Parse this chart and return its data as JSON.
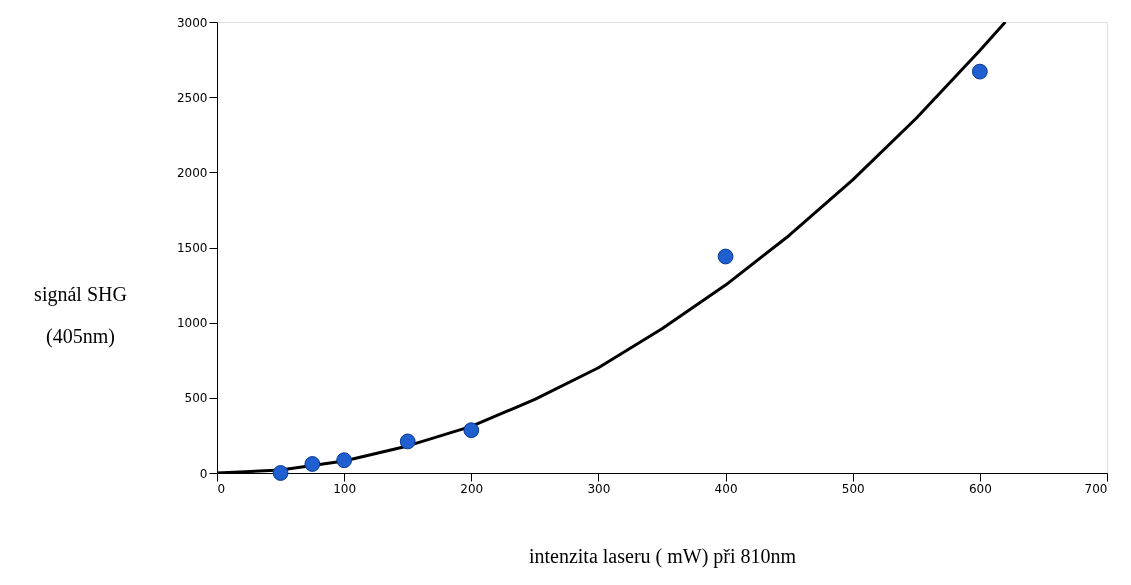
{
  "chart_data": {
    "type": "scatter",
    "xlabel": "intenzita laseru ( mW) při 810nm",
    "ylabel": "signál SHG\n(405nm)",
    "xlim": [
      0,
      700
    ],
    "xticks": [
      0,
      100,
      200,
      300,
      400,
      500,
      600,
      700
    ],
    "ylim": [
      0,
      3000
    ],
    "yticks": [
      0,
      500,
      1000,
      1500,
      2000,
      2500,
      3000
    ],
    "grid": false,
    "marker": "circle",
    "series": [
      {
        "color": "#1f5fd0",
        "x": [
          50,
          75,
          100,
          150,
          200,
          400,
          600
        ],
        "values": [
          0,
          60,
          85,
          210,
          285,
          1440,
          2670
        ]
      },
      {
        "type": "line",
        "color": "#000000",
        "marker": "none",
        "line_style": "solid",
        "x": [
          0,
          50,
          100,
          150,
          200,
          250,
          300,
          350,
          400,
          450,
          500,
          550,
          600,
          620
        ],
        "values": [
          0,
          20,
          80,
          180,
          310,
          490,
          700,
          960,
          1250,
          1580,
          1950,
          2360,
          2810,
          3000
        ]
      }
    ]
  }
}
